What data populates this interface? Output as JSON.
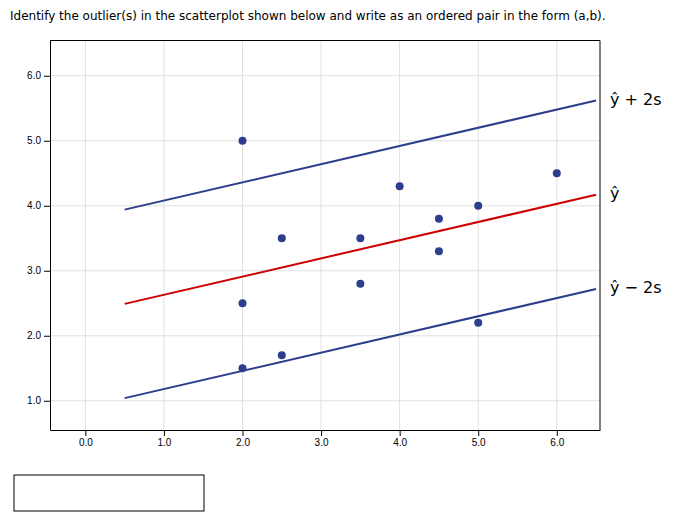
{
  "chart_data": {
    "type": "scatter",
    "title": "Identify the outlier(s) in the scatterplot shown below and write as an ordered pair in the form (a,b).",
    "series": [
      {
        "type": "line",
        "name": "ŷ",
        "color": "#cc0000",
        "x": [
          0.5,
          6.5
        ],
        "values": [
          2.49,
          4.17
        ]
      },
      {
        "type": "line",
        "name": "ŷ + 2s",
        "color": "#2c3e8c",
        "x": [
          0.5,
          6.5
        ],
        "values": [
          3.94,
          5.62
        ]
      },
      {
        "type": "line",
        "name": "ŷ − 2s",
        "color": "#2c3e8c",
        "x": [
          0.5,
          6.5
        ],
        "values": [
          1.04,
          2.72
        ]
      },
      {
        "type": "scatter",
        "color": "#2c3e8c",
        "x": [
          2.0,
          2.0,
          2.0,
          2.5,
          2.5,
          3.5,
          3.5,
          4.0,
          4.5,
          4.5,
          5.0,
          5.0,
          6.0
        ],
        "values": [
          5.0,
          1.5,
          2.5,
          1.7,
          3.5,
          3.5,
          2.8,
          4.3,
          3.8,
          3.3,
          4.0,
          2.2,
          4.5
        ]
      }
    ],
    "xlim": [
      -0.45,
      6.55
    ],
    "ylim": [
      0.55,
      6.55
    ],
    "xticks": [
      {
        "value": 0,
        "label": "0.0"
      },
      {
        "value": 1,
        "label": "1.0"
      },
      {
        "value": 2,
        "label": "2.0"
      },
      {
        "value": 3,
        "label": "3.0"
      },
      {
        "value": 4,
        "label": "4.0"
      },
      {
        "value": 5,
        "label": "5.0"
      },
      {
        "value": 6,
        "label": "6.0"
      }
    ],
    "yticks": [
      {
        "value": 1,
        "label": "1.0"
      },
      {
        "value": 2,
        "label": "2.0"
      },
      {
        "value": 3,
        "label": "3.0"
      },
      {
        "value": 4,
        "label": "4.0"
      },
      {
        "value": 5,
        "label": "5.0"
      },
      {
        "value": 6,
        "label": "6.0"
      }
    ],
    "grid": true
  }
}
